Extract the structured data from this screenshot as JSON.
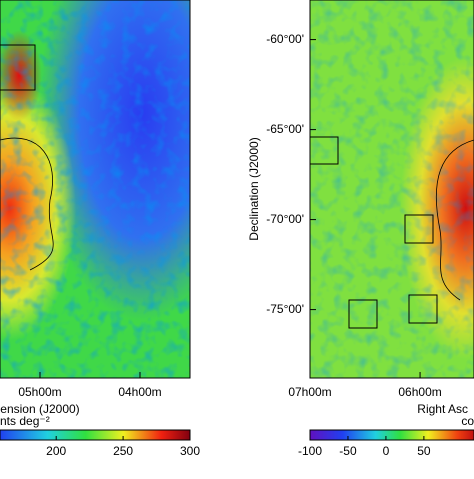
{
  "chart_data": [
    {
      "type": "heatmap",
      "xlabel": "ension (J2000)",
      "colorbar_label": "nts deg⁻²",
      "xlim": [
        5.4,
        3.5
      ],
      "xticks": [
        {
          "value": 5,
          "label": "05h00m"
        },
        {
          "value": 4,
          "label": "04h00m"
        }
      ],
      "clim": [
        158,
        300
      ],
      "cticks": [
        200,
        250,
        300
      ]
    },
    {
      "type": "heatmap",
      "xlabel": "Right Asc",
      "ylabel": "Declination (J2000)",
      "colorbar_label": "co",
      "xlim": [
        7,
        5.51
      ],
      "xticks": [
        {
          "value": 7,
          "label": "07h00m"
        },
        {
          "value": 6,
          "label": "06h00m"
        }
      ],
      "ylim": [
        -78.8,
        -57.8
      ],
      "yticks": [
        {
          "value": -60,
          "label": "-60°00'"
        },
        {
          "value": -65,
          "label": "-65°00'"
        },
        {
          "value": -70,
          "label": "-70°00'"
        },
        {
          "value": -75,
          "label": "-75°00'"
        }
      ],
      "clim": [
        -100,
        116
      ],
      "cticks": [
        -100,
        -50,
        0,
        50
      ]
    }
  ]
}
